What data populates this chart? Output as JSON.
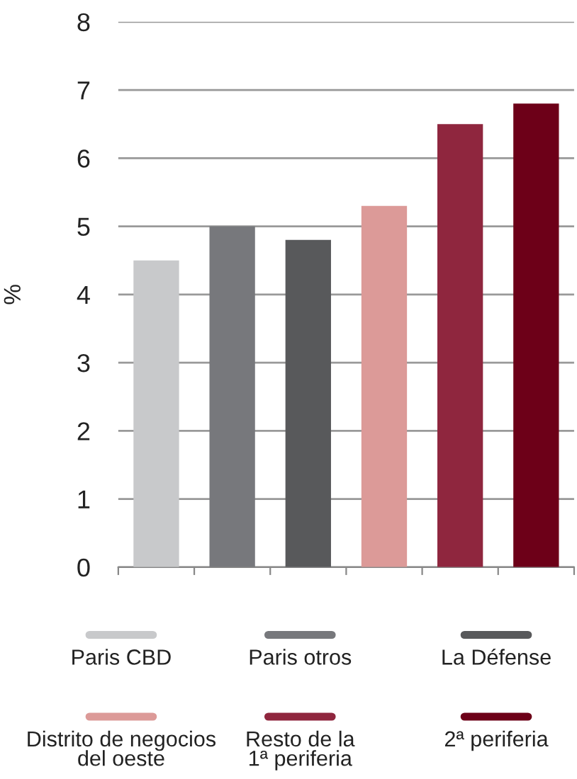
{
  "chart_data": {
    "type": "bar",
    "ylabel": "%",
    "categories": [
      null,
      null,
      null,
      null,
      null,
      null
    ],
    "series": [
      {
        "name": "Paris CBD",
        "color": "#c8c9cb",
        "values": [
          4.5,
          null,
          null,
          null,
          null,
          null
        ]
      },
      {
        "name": "Paris otros",
        "color": "#77787c",
        "values": [
          null,
          5.0,
          null,
          null,
          null,
          null
        ]
      },
      {
        "name": "La Défense",
        "color": "#58595b",
        "values": [
          null,
          null,
          4.8,
          null,
          null,
          null
        ]
      },
      {
        "name": "Distrito de negocios\ndel oeste",
        "color": "#dc9a98",
        "values": [
          null,
          null,
          null,
          5.3,
          null,
          null
        ]
      },
      {
        "name": "Resto de la\n1ª periferia",
        "color": "#8f263e",
        "values": [
          null,
          null,
          null,
          null,
          6.5,
          null
        ]
      },
      {
        "name": "2ª periferia",
        "color": "#6d0018",
        "values": [
          null,
          null,
          null,
          null,
          null,
          6.8
        ]
      }
    ],
    "ylim": [
      0,
      8
    ],
    "yticks": [
      0,
      1,
      2,
      3,
      4,
      5,
      6,
      7,
      8
    ],
    "grid": "y",
    "legend": "bottom"
  }
}
